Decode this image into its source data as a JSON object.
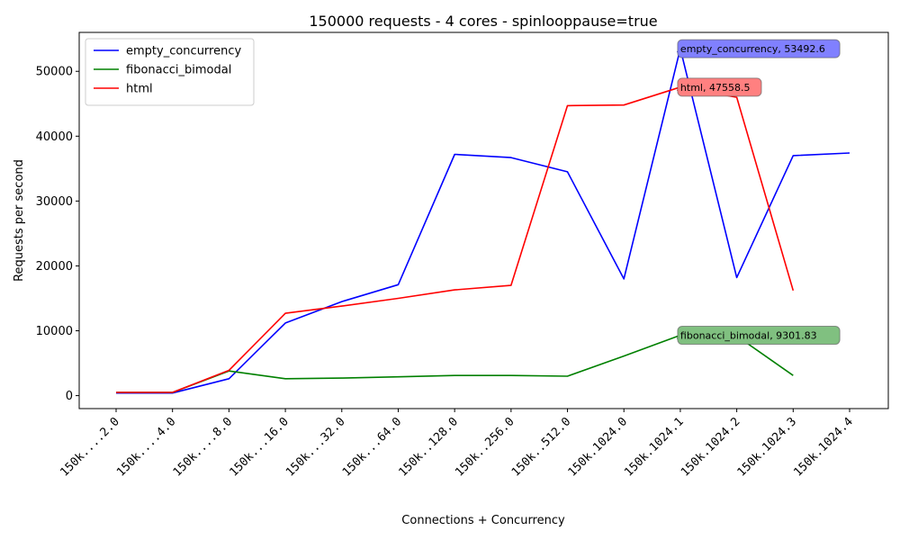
{
  "chart_data": {
    "type": "line",
    "title": "150000 requests - 4 cores - spinlooppause=true",
    "xlabel": "Connections + Concurrency",
    "ylabel": "Requests per second",
    "categories": [
      "150k....2.0",
      "150k....4.0",
      "150k....8.0",
      "150k...16.0",
      "150k...32.0",
      "150k...64.0",
      "150k..128.0",
      "150k..256.0",
      "150k..512.0",
      "150k.1024.0",
      "150k.1024.1",
      "150k.1024.2",
      "150k.1024.3",
      "150k.1024.4"
    ],
    "yticks": [
      0,
      10000,
      20000,
      30000,
      40000,
      50000
    ],
    "ylim": [
      -2000,
      56000
    ],
    "grid": false,
    "legend_position": "top-left",
    "series": [
      {
        "name": "empty_concurrency",
        "color": "#0000ff",
        "values": [
          400,
          400,
          2600,
          11200,
          14500,
          17100,
          37200,
          36700,
          34500,
          18000,
          53492.6,
          18200,
          37000,
          37400
        ]
      },
      {
        "name": "fibonacci_bimodal",
        "color": "#008000",
        "values": [
          500,
          500,
          3800,
          2600,
          2700,
          2900,
          3100,
          3100,
          3000,
          6100,
          9301.83,
          9200,
          3100,
          null
        ]
      },
      {
        "name": "html",
        "color": "#ff0000",
        "values": [
          500,
          500,
          3900,
          12700,
          13800,
          15000,
          16300,
          17000,
          44700,
          44800,
          47558.5,
          46000,
          16200,
          null
        ]
      }
    ],
    "annotations": [
      {
        "series": 0,
        "index": 10,
        "text": "empty_concurrency, 53492.6",
        "color": "#8080ff"
      },
      {
        "series": 2,
        "index": 10,
        "text": "html, 47558.5",
        "color": "#ff8080"
      },
      {
        "series": 1,
        "index": 10,
        "text": "fibonacci_bimodal, 9301.83",
        "color": "#80c080"
      }
    ]
  }
}
